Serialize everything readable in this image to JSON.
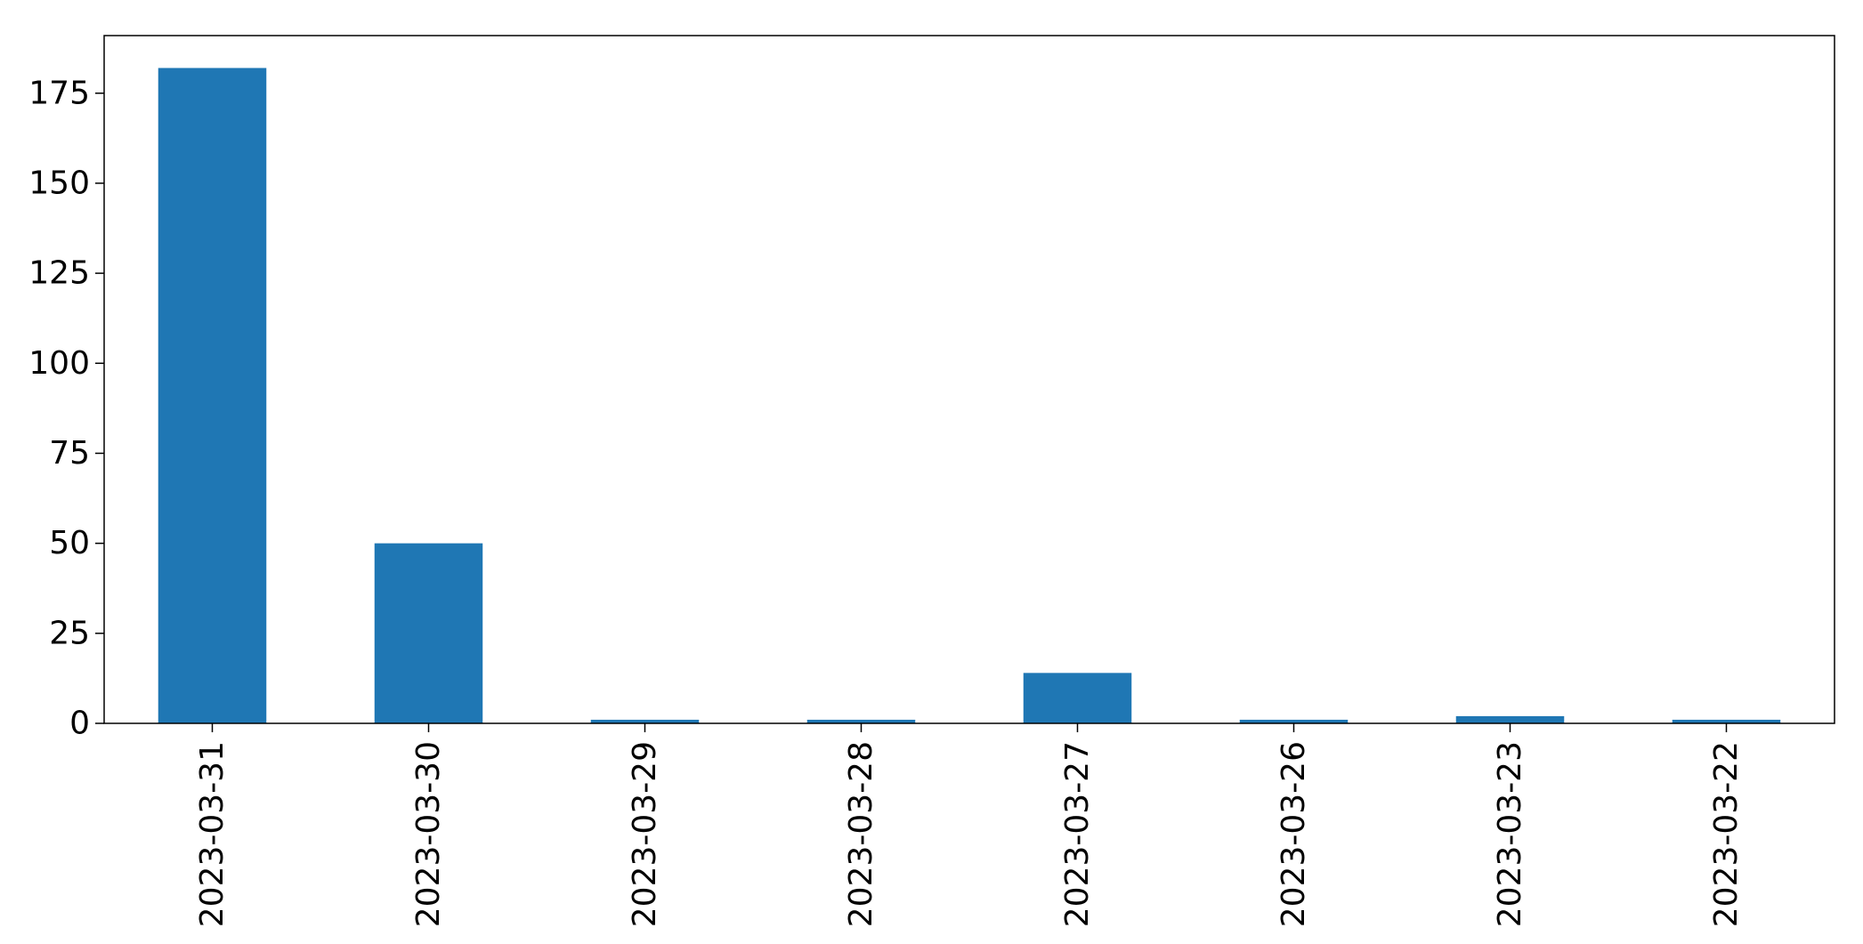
{
  "chart_data": {
    "type": "bar",
    "title": "",
    "xlabel": "",
    "ylabel": "",
    "categories": [
      "2023-03-31",
      "2023-03-30",
      "2023-03-29",
      "2023-03-28",
      "2023-03-27",
      "2023-03-26",
      "2023-03-23",
      "2023-03-22"
    ],
    "values": [
      182,
      50,
      1,
      1,
      14,
      1,
      2,
      1
    ],
    "ylim": [
      0,
      191
    ],
    "yticks": [
      0,
      25,
      50,
      75,
      100,
      125,
      150,
      175
    ],
    "grid": false,
    "legend": "none",
    "bar_color": "#1f77b4"
  }
}
